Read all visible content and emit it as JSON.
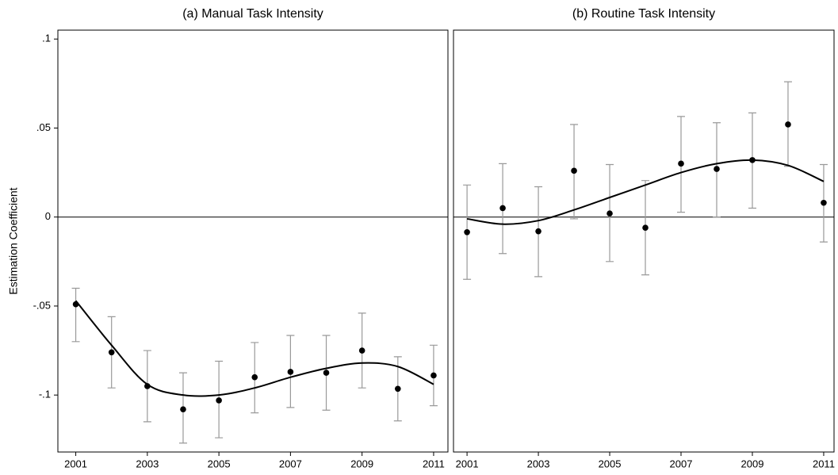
{
  "chart_data": [
    {
      "type": "scatter",
      "title": "(a) Manual Task Intensity",
      "ylabel": "Estimation Coefficient",
      "x": [
        2001,
        2002,
        2003,
        2004,
        2005,
        2006,
        2007,
        2008,
        2009,
        2010,
        2011
      ],
      "values": [
        -0.049,
        -0.076,
        -0.095,
        -0.108,
        -0.103,
        -0.09,
        -0.087,
        -0.0875,
        -0.075,
        -0.0965,
        -0.089
      ],
      "ci_high": [
        -0.04,
        -0.056,
        -0.075,
        -0.0875,
        -0.081,
        -0.0705,
        -0.0665,
        -0.0665,
        -0.054,
        -0.0785,
        -0.072
      ],
      "ci_low": [
        -0.07,
        -0.096,
        -0.115,
        -0.127,
        -0.124,
        -0.11,
        -0.107,
        -0.1085,
        -0.096,
        -0.1145,
        -0.106
      ],
      "fit": [
        -0.047,
        -0.072,
        -0.094,
        -0.1,
        -0.1,
        -0.096,
        -0.09,
        -0.085,
        -0.082,
        -0.084,
        -0.094
      ],
      "color": "#000000",
      "ci_color": "#999999",
      "xlim": [
        2000.5,
        2011.4
      ],
      "ylim": [
        -0.132,
        0.105
      ],
      "xticks": [
        2001,
        2003,
        2005,
        2007,
        2009,
        2011
      ],
      "yticks": [
        {
          "value": -0.1,
          "label": "-.1"
        },
        {
          "value": -0.05,
          "label": "-.05"
        },
        0,
        {
          "value": 0.05,
          "label": ".05"
        },
        {
          "value": 0.1,
          "label": ".1"
        }
      ],
      "reference_line": 0
    },
    {
      "type": "scatter",
      "title": "(b) Routine Task Intensity",
      "x": [
        2001,
        2002,
        2003,
        2004,
        2005,
        2006,
        2007,
        2008,
        2009,
        2010,
        2011
      ],
      "values": [
        -0.0085,
        0.005,
        -0.008,
        0.026,
        0.002,
        -0.006,
        0.03,
        0.027,
        0.032,
        0.052,
        0.008
      ],
      "ci_high": [
        0.018,
        0.03,
        0.017,
        0.052,
        0.0295,
        0.0205,
        0.0565,
        0.053,
        0.0585,
        0.076,
        0.0295
      ],
      "ci_low": [
        -0.035,
        -0.0205,
        -0.0335,
        -0.001,
        -0.025,
        -0.0325,
        0.0027,
        0,
        0.005,
        0.0285,
        -0.014
      ],
      "fit": [
        -0.001,
        -0.004,
        -0.002,
        0.004,
        0.011,
        0.018,
        0.025,
        0.03,
        0.032,
        0.029,
        0.02
      ],
      "color": "#000000",
      "ci_color": "#999999",
      "xlim": [
        2000.62,
        2011.29
      ],
      "ylim": [
        -0.132,
        0.105
      ],
      "xticks": [
        2001,
        2003,
        2005,
        2007,
        2009,
        2011
      ],
      "reference_line": 0
    }
  ]
}
